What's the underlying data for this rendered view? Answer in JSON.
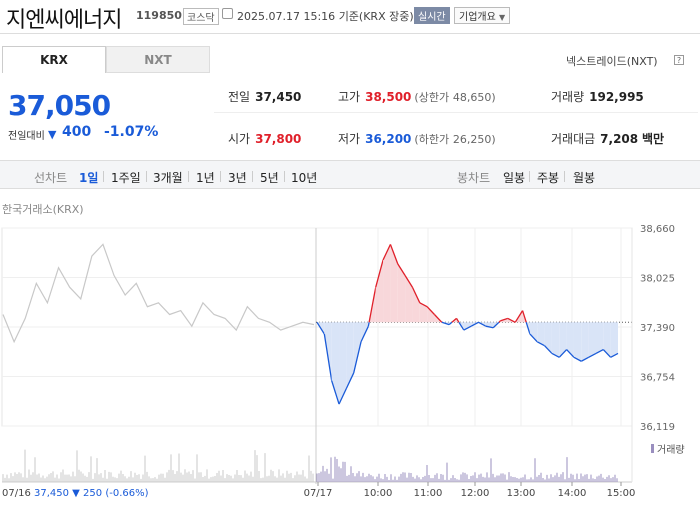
{
  "header": {
    "company_name": "지엔씨에너지",
    "stock_code": "119850",
    "market_badge": "코스닥",
    "clock_icon": "clock-icon",
    "datetime": "2025.07.17 15:16",
    "datetime_suffix": "기준(KRX 장중)",
    "realtime_badge": "실시간",
    "company_info_button": "기업개요"
  },
  "exchange_tabs": [
    {
      "label": "KRX",
      "active": true
    },
    {
      "label": "NXT",
      "active": false
    }
  ],
  "nextrade_link": "넥스트레이드(NXT)",
  "help_icon": "question-icon",
  "price": {
    "current": "37,050",
    "change_label": "전일대비",
    "change_icon": "down-triangle-icon",
    "change": "400",
    "change_pct": "-1.07%"
  },
  "stats": {
    "prev_label": "전일",
    "prev_value": "37,450",
    "high_label": "고가",
    "high_value": "38,500",
    "upper_limit_label": "(상한가",
    "upper_limit_value": "48,650)",
    "volume_label": "거래량",
    "volume_value": "192,995",
    "open_label": "시가",
    "open_value": "37,800",
    "low_label": "저가",
    "low_value": "36,200",
    "lower_limit_label": "(하한가",
    "lower_limit_value": "26,250)",
    "amount_label": "거래대금",
    "amount_value": "7,208",
    "amount_unit": "백만"
  },
  "range_bar": {
    "line_chart_label": "선차트",
    "periods": [
      "1일",
      "1주일",
      "3개월",
      "1년",
      "3년",
      "5년",
      "10년"
    ],
    "active_period": "1일",
    "candle_chart_label": "봉차트",
    "candle_periods": [
      "일봉",
      "주봉",
      "월봉"
    ]
  },
  "chart_source": "한국거래소(KRX)",
  "volume_legend": "거래량",
  "prev_day_summary": {
    "date": "07/16",
    "close": "37,450",
    "change_icon": "down-triangle-icon",
    "change": "250",
    "change_pct": "(-0.66%)"
  },
  "colors": {
    "up": "#e0202a",
    "down": "#1a5bd8",
    "prev_day_line": "#c8c8c8"
  },
  "chart_data": {
    "type": "line",
    "title": "",
    "ylim": [
      36119,
      38660
    ],
    "y_ticks": [
      "38,660",
      "38,025",
      "37,390",
      "36,754",
      "36,119"
    ],
    "x_ticks": [
      "07/16",
      "07/17",
      "10:00",
      "11:00",
      "12:00",
      "13:00",
      "14:00",
      "15:00"
    ],
    "baseline": 37450,
    "series": [
      {
        "period": "prev_day",
        "values": [
          37550,
          37200,
          37500,
          37950,
          37700,
          38150,
          37900,
          37750,
          38300,
          38450,
          38050,
          37800,
          37950,
          37650,
          37700,
          37550,
          37600,
          37400,
          37700,
          37550,
          37500,
          37350,
          37650,
          37500,
          37450,
          37350,
          37400,
          37450,
          37420
        ]
      },
      {
        "period": "today",
        "values": [
          37450,
          37300,
          36700,
          36400,
          36600,
          36800,
          37200,
          37400,
          37900,
          38250,
          38450,
          38200,
          38050,
          37900,
          37700,
          37650,
          37550,
          37450,
          37420,
          37500,
          37350,
          37400,
          37450,
          37400,
          37380,
          37470,
          37500,
          37450,
          37600,
          37300,
          37200,
          37150,
          37050,
          37000,
          37100,
          37000,
          36950,
          37000,
          37050,
          37100,
          37000,
          37050
        ]
      }
    ]
  }
}
